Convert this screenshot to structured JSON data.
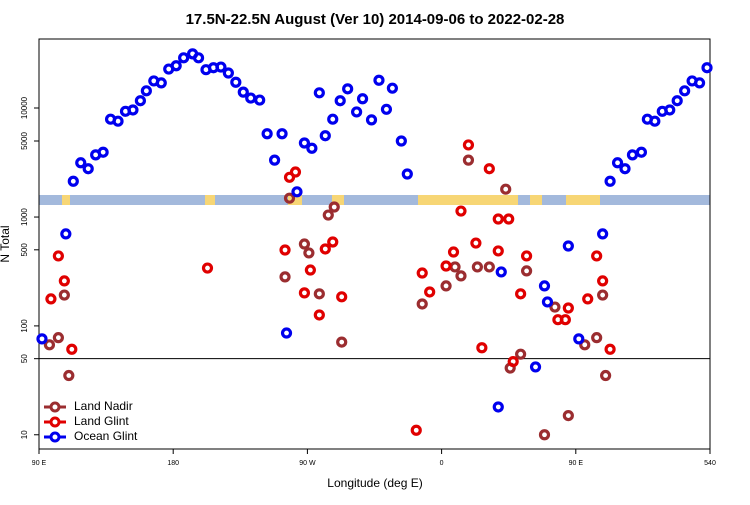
{
  "chart_data": {
    "type": "scatter",
    "title": "17.5N-22.5N August (Ver 10)   2014-09-06 to 2022-02-28",
    "x_label": "Longitude (deg E)",
    "y_label": "N Total",
    "xlim": [
      90,
      540
    ],
    "xticks": [
      {
        "value": 90,
        "label": "90 E"
      },
      180,
      {
        "value": 270,
        "label": "90 W"
      },
      {
        "value": 360,
        "label": "0"
      },
      {
        "value": 450,
        "label": "90 E"
      },
      540
    ],
    "ylim": [
      7.4,
      1290
    ],
    "yticks": [
      10,
      50,
      100,
      500,
      1000
    ],
    "log_y": true,
    "hline": 50,
    "y2lim": [
      -3180,
      20450
    ],
    "y2ticks": [
      5000,
      10000
    ],
    "legend": "bottom-left",
    "series": [
      {
        "name": "Land Nadir",
        "color": "#9b2d30",
        "x": [
          97,
          103,
          107,
          110,
          255,
          268,
          271,
          278,
          284,
          288,
          293,
          347,
          363,
          369,
          373,
          384,
          392,
          406,
          413,
          417,
          429,
          436,
          445,
          456,
          464,
          468,
          470,
          258
        ],
        "values": [
          67,
          78,
          192,
          35,
          282,
          565,
          468,
          197,
          1043,
          1236,
          71,
          159,
          233,
          348,
          288,
          348,
          348,
          41,
          55,
          320,
          10,
          149,
          15,
          67,
          78,
          192,
          35,
          1490
        ],
        "top_x": [
          378,
          403
        ],
        "top_values": [
          2100,
          -2300
        ]
      },
      {
        "name": "Land Glint",
        "color": "#e00000",
        "x": [
          98,
          103,
          107,
          112,
          203,
          255,
          268,
          272,
          278,
          282,
          287,
          293,
          343,
          347,
          352,
          363,
          368,
          373,
          383,
          387,
          398,
          398,
          405,
          408,
          413,
          417,
          438,
          443,
          445,
          458,
          464,
          468,
          473
        ],
        "values": [
          177,
          439,
          259,
          61,
          340,
          498,
          201,
          326,
          126,
          509,
          590,
          185,
          11,
          306,
          205,
          355,
          477,
          1135,
          577,
          63,
          488,
          959,
          959,
          47,
          197,
          439,
          114,
          114,
          146,
          177,
          439,
          259,
          61
        ],
        "top_x": [
          258,
          262,
          378,
          392
        ],
        "top_values": [
          -500,
          300,
          4400,
          800
        ]
      },
      {
        "name": "Ocean Glint",
        "color": "#0000ee",
        "x": [
          92,
          108,
          256,
          400,
          398,
          423,
          429,
          431,
          445,
          452,
          468
        ],
        "values": [
          76,
          700,
          86,
          313,
          18,
          42,
          233,
          166,
          542,
          76,
          700
        ],
        "top_x": [
          113,
          118,
          123,
          128,
          133,
          138,
          143,
          148,
          153,
          158,
          162,
          167,
          172,
          177,
          182,
          187,
          193,
          197,
          202,
          207,
          212,
          217,
          222,
          227,
          232,
          238,
          243,
          248,
          253,
          263,
          268,
          273,
          278,
          282,
          287,
          292,
          297,
          303,
          307,
          313,
          318,
          323,
          327,
          333,
          337,
          473,
          478,
          483,
          488,
          494,
          498,
          503,
          508,
          513,
          518,
          523,
          528,
          533,
          538
        ],
        "top_values": [
          -1100,
          1700,
          800,
          2900,
          3300,
          8300,
          8000,
          9500,
          9700,
          11100,
          12600,
          14100,
          13800,
          15900,
          16400,
          17600,
          18200,
          17600,
          15800,
          16100,
          16200,
          15300,
          13900,
          12400,
          11500,
          11200,
          6100,
          2100,
          6100,
          -2700,
          4700,
          3900,
          12300,
          5800,
          8300,
          11100,
          12900,
          9400,
          11400,
          8200,
          14200,
          9800,
          13000,
          5000,
          0,
          -1100,
          1700,
          800,
          2900,
          3300,
          8300,
          8000,
          9500,
          9700,
          11100,
          12600,
          14100,
          13800,
          16100
        ]
      }
    ]
  }
}
